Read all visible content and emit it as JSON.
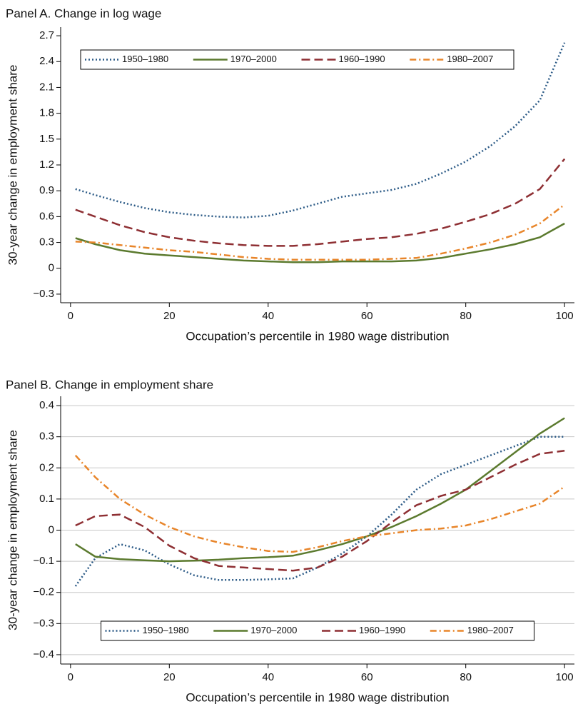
{
  "chart_data": [
    {
      "type": "line",
      "title": "Panel A. Change in log wage",
      "x_label": "Occupation’s percentile in 1980 wage distribution",
      "y_label": "30-year change in employment share",
      "x": [
        1,
        5,
        10,
        15,
        20,
        25,
        30,
        35,
        40,
        45,
        50,
        55,
        60,
        65,
        70,
        75,
        80,
        85,
        90,
        95,
        100
      ],
      "series": [
        {
          "name": "1950–1980",
          "color": "#2b5a86",
          "linestyle": "dotted",
          "values": [
            0.92,
            0.85,
            0.77,
            0.7,
            0.65,
            0.62,
            0.6,
            0.59,
            0.61,
            0.67,
            0.75,
            0.83,
            0.87,
            0.91,
            0.98,
            1.1,
            1.24,
            1.42,
            1.65,
            1.95,
            2.62
          ]
        },
        {
          "name": "1970–2000",
          "color": "#5b7a2e",
          "linestyle": "solid",
          "values": [
            0.35,
            0.28,
            0.21,
            0.17,
            0.15,
            0.13,
            0.11,
            0.09,
            0.08,
            0.07,
            0.07,
            0.08,
            0.08,
            0.08,
            0.09,
            0.12,
            0.17,
            0.22,
            0.28,
            0.36,
            0.52
          ]
        },
        {
          "name": "1960–1990",
          "color": "#8e2f33",
          "linestyle": "dashed",
          "values": [
            0.68,
            0.6,
            0.5,
            0.42,
            0.36,
            0.32,
            0.29,
            0.27,
            0.26,
            0.26,
            0.28,
            0.31,
            0.34,
            0.36,
            0.4,
            0.46,
            0.54,
            0.63,
            0.75,
            0.92,
            1.27
          ]
        },
        {
          "name": "1980–2007",
          "color": "#e8852a",
          "linestyle": "dashdot",
          "values": [
            0.31,
            0.3,
            0.27,
            0.24,
            0.21,
            0.19,
            0.16,
            0.13,
            0.11,
            0.1,
            0.1,
            0.1,
            0.1,
            0.11,
            0.12,
            0.17,
            0.23,
            0.3,
            0.39,
            0.52,
            0.74
          ]
        }
      ],
      "xlim": [
        -2,
        102
      ],
      "xticks": [
        0,
        20,
        40,
        60,
        80,
        100
      ],
      "ylim": [
        -0.4,
        2.8
      ],
      "yticks": [
        {
          "value": -0.3,
          "label": "−0.3"
        },
        0,
        0.3,
        0.6,
        0.9,
        1.2,
        1.5,
        1.8,
        2.1,
        2.4,
        2.7
      ],
      "grid": false,
      "legend": "upper left"
    },
    {
      "type": "line",
      "title": "Panel B. Change in employment share",
      "x_label": "Occupation’s percentile in 1980 wage distribution",
      "y_label": "30-year change in employment share",
      "x": [
        1,
        5,
        10,
        15,
        20,
        25,
        30,
        35,
        40,
        45,
        50,
        55,
        60,
        65,
        70,
        75,
        80,
        85,
        90,
        95,
        100
      ],
      "series": [
        {
          "name": "1950–1980",
          "color": "#2b5a86",
          "linestyle": "dotted",
          "values": [
            -0.18,
            -0.09,
            -0.045,
            -0.065,
            -0.11,
            -0.145,
            -0.16,
            -0.16,
            -0.158,
            -0.155,
            -0.12,
            -0.075,
            -0.02,
            0.05,
            0.13,
            0.18,
            0.21,
            0.24,
            0.27,
            0.3,
            0.3
          ]
        },
        {
          "name": "1970–2000",
          "color": "#5b7a2e",
          "linestyle": "solid",
          "values": [
            -0.045,
            -0.085,
            -0.093,
            -0.097,
            -0.1,
            -0.098,
            -0.095,
            -0.09,
            -0.087,
            -0.082,
            -0.065,
            -0.045,
            -0.02,
            0.01,
            0.045,
            0.085,
            0.13,
            0.19,
            0.25,
            0.31,
            0.36
          ]
        },
        {
          "name": "1960–1990",
          "color": "#8e2f33",
          "linestyle": "dashed",
          "values": [
            0.015,
            0.045,
            0.05,
            0.01,
            -0.05,
            -0.09,
            -0.115,
            -0.12,
            -0.125,
            -0.13,
            -0.12,
            -0.085,
            -0.035,
            0.025,
            0.08,
            0.11,
            0.13,
            0.17,
            0.21,
            0.245,
            0.255
          ]
        },
        {
          "name": "1980–2007",
          "color": "#e8852a",
          "linestyle": "dashdot",
          "values": [
            0.24,
            0.17,
            0.1,
            0.05,
            0.01,
            -0.02,
            -0.04,
            -0.055,
            -0.067,
            -0.07,
            -0.055,
            -0.035,
            -0.02,
            -0.01,
            0.0,
            0.005,
            0.015,
            0.035,
            0.06,
            0.085,
            0.14
          ]
        }
      ],
      "xlim": [
        -2,
        102
      ],
      "xticks": [
        0,
        20,
        40,
        60,
        80,
        100
      ],
      "ylim": [
        -0.43,
        0.43
      ],
      "yticks": [
        {
          "value": -0.4,
          "label": "−0.4"
        },
        {
          "value": -0.3,
          "label": "−0.3"
        },
        {
          "value": -0.2,
          "label": "−0.2"
        },
        {
          "value": -0.1,
          "label": "−0.1"
        },
        0,
        0.1,
        0.2,
        0.3,
        0.4
      ],
      "grid": true,
      "legend": "lower center"
    }
  ]
}
